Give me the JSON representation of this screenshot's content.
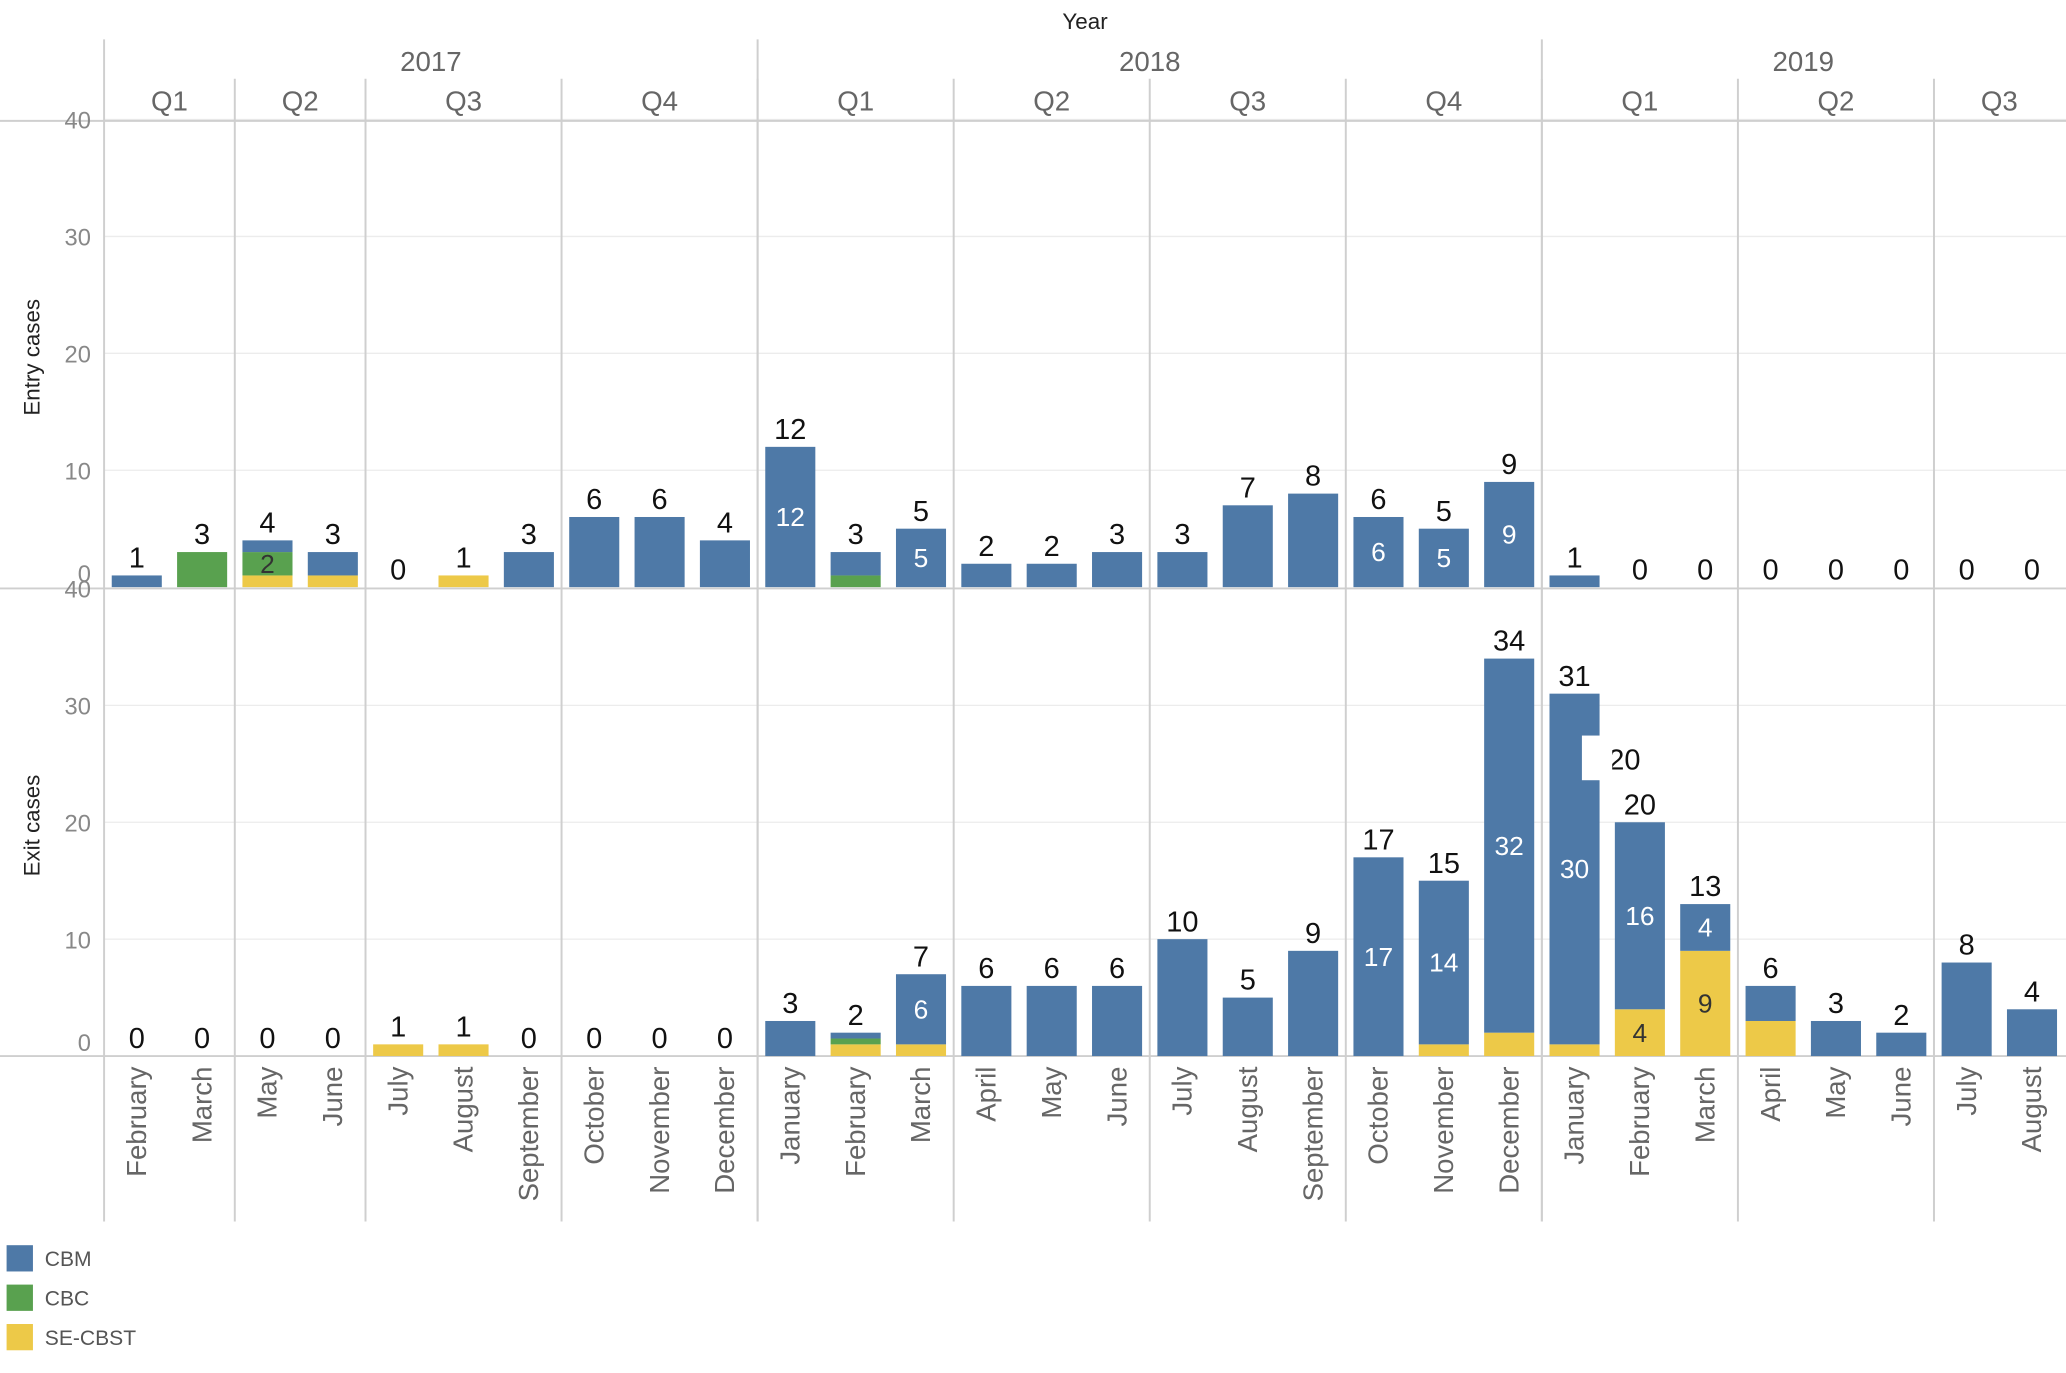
{
  "header": {
    "year_title": "Year",
    "years": [
      {
        "label": "2017",
        "quarters": [
          {
            "label": "Q1",
            "months": [
              "February",
              "March"
            ]
          },
          {
            "label": "Q2",
            "months": [
              "May",
              "June"
            ]
          },
          {
            "label": "Q3",
            "months": [
              "July",
              "August",
              "September"
            ]
          },
          {
            "label": "Q4",
            "months": [
              "October",
              "November",
              "December"
            ]
          }
        ]
      },
      {
        "label": "2018",
        "quarters": [
          {
            "label": "Q1",
            "months": [
              "January",
              "February",
              "March"
            ]
          },
          {
            "label": "Q2",
            "months": [
              "April",
              "May",
              "June"
            ]
          },
          {
            "label": "Q3",
            "months": [
              "July",
              "August",
              "September"
            ]
          },
          {
            "label": "Q4",
            "months": [
              "October",
              "November",
              "December"
            ]
          }
        ]
      },
      {
        "label": "2019",
        "quarters": [
          {
            "label": "Q1",
            "months": [
              "January",
              "February",
              "March"
            ]
          },
          {
            "label": "Q2",
            "months": [
              "April",
              "May",
              "June"
            ]
          },
          {
            "label": "Q3",
            "months": [
              "July",
              "August"
            ]
          }
        ]
      }
    ]
  },
  "legend": [
    {
      "label": "CBM",
      "color": "#4e79a7"
    },
    {
      "label": "CBC",
      "color": "#59a14f"
    },
    {
      "label": "SE-CBST",
      "color": "#edc948"
    }
  ],
  "chart_data": [
    {
      "type": "bar",
      "stacked": true,
      "ylabel": "Entry cases",
      "ylim": [
        0,
        40
      ],
      "yticks": [
        0,
        10,
        20,
        30,
        40
      ],
      "categories": [
        "2017 February",
        "2017 March",
        "2017 May",
        "2017 June",
        "2017 July",
        "2017 August",
        "2017 September",
        "2017 October",
        "2017 November",
        "2017 December",
        "2018 January",
        "2018 February",
        "2018 March",
        "2018 April",
        "2018 May",
        "2018 June",
        "2018 July",
        "2018 August",
        "2018 September",
        "2018 October",
        "2018 November",
        "2018 December",
        "2019 January",
        "2019 February",
        "2019 March",
        "2019 April",
        "2019 May",
        "2019 June",
        "2019 July",
        "2019 August"
      ],
      "series": [
        {
          "name": "SE-CBST",
          "values": [
            0,
            0,
            1,
            1,
            0,
            1,
            0,
            0,
            0,
            0,
            0,
            0,
            0,
            0,
            0,
            0,
            0,
            0,
            0,
            0,
            0,
            0,
            0,
            0,
            0,
            0,
            0,
            0,
            0,
            0
          ]
        },
        {
          "name": "CBC",
          "values": [
            0,
            3,
            2,
            0,
            0,
            0,
            0,
            0,
            0,
            0,
            0,
            1,
            0,
            0,
            0,
            0,
            0,
            0,
            0,
            0,
            0,
            0,
            0,
            0,
            0,
            0,
            0,
            0,
            0,
            0
          ]
        },
        {
          "name": "CBM",
          "values": [
            1,
            0,
            1,
            2,
            0,
            0,
            3,
            6,
            6,
            4,
            12,
            2,
            5,
            2,
            2,
            3,
            3,
            7,
            8,
            6,
            5,
            9,
            1,
            0,
            0,
            0,
            0,
            0,
            0,
            0
          ]
        }
      ],
      "totals": [
        1,
        3,
        4,
        3,
        0,
        1,
        3,
        6,
        6,
        4,
        12,
        3,
        5,
        2,
        2,
        3,
        3,
        7,
        8,
        6,
        5,
        9,
        1,
        0,
        0,
        0,
        0,
        0,
        0,
        0
      ],
      "inner_labels": [
        {
          "index": 2,
          "series": "CBC",
          "text": "2"
        },
        {
          "index": 10,
          "series": "CBM",
          "text": "12"
        },
        {
          "index": 12,
          "series": "CBM",
          "text": "5"
        },
        {
          "index": 19,
          "series": "CBM",
          "text": "6"
        },
        {
          "index": 20,
          "series": "CBM",
          "text": "5"
        },
        {
          "index": 21,
          "series": "CBM",
          "text": "9"
        }
      ]
    },
    {
      "type": "bar",
      "stacked": true,
      "ylabel": "Exit cases",
      "ylim": [
        0,
        40
      ],
      "yticks": [
        0,
        10,
        20,
        30,
        40
      ],
      "categories": [
        "2017 February",
        "2017 March",
        "2017 May",
        "2017 June",
        "2017 July",
        "2017 August",
        "2017 September",
        "2017 October",
        "2017 November",
        "2017 December",
        "2018 January",
        "2018 February",
        "2018 March",
        "2018 April",
        "2018 May",
        "2018 June",
        "2018 July",
        "2018 August",
        "2018 September",
        "2018 October",
        "2018 November",
        "2018 December",
        "2019 January",
        "2019 February",
        "2019 March",
        "2019 April",
        "2019 May",
        "2019 June",
        "2019 July",
        "2019 August"
      ],
      "series": [
        {
          "name": "SE-CBST",
          "values": [
            0,
            0,
            0,
            0,
            1,
            1,
            0,
            0,
            0,
            0,
            0,
            1,
            1,
            0,
            0,
            0,
            0,
            0,
            0,
            0,
            1,
            2,
            1,
            4,
            9,
            3,
            0,
            0,
            0,
            0
          ]
        },
        {
          "name": "CBC",
          "values": [
            0,
            0,
            0,
            0,
            0,
            0,
            0,
            0,
            0,
            0,
            0,
            0.5,
            0,
            0,
            0,
            0,
            0,
            0,
            0,
            0,
            0,
            0,
            0,
            0,
            0,
            0,
            0,
            0,
            0,
            0
          ]
        },
        {
          "name": "CBM",
          "values": [
            0,
            0,
            0,
            0,
            0,
            0,
            0,
            0,
            0,
            0,
            3,
            0.5,
            6,
            6,
            6,
            6,
            10,
            5,
            9,
            17,
            14,
            32,
            30,
            16,
            4,
            3,
            3,
            2,
            8,
            4
          ]
        }
      ],
      "totals": [
        0,
        0,
        0,
        0,
        1,
        1,
        0,
        0,
        0,
        0,
        3,
        2,
        7,
        6,
        6,
        6,
        10,
        5,
        9,
        17,
        15,
        34,
        31,
        20,
        13,
        6,
        3,
        2,
        8,
        4
      ],
      "inner_labels": [
        {
          "index": 12,
          "series": "CBM",
          "text": "6"
        },
        {
          "index": 19,
          "series": "CBM",
          "text": "17"
        },
        {
          "index": 20,
          "series": "CBM",
          "text": "14"
        },
        {
          "index": 21,
          "series": "CBM",
          "text": "32"
        },
        {
          "index": 22,
          "series": "CBM",
          "text": "30"
        },
        {
          "index": 23,
          "series": "CBM",
          "text": "16"
        },
        {
          "index": 23,
          "series": "SE-CBST",
          "text": "4"
        },
        {
          "index": 24,
          "series": "CBM",
          "text": "4"
        },
        {
          "index": 24,
          "series": "SE-CBST",
          "text": "9"
        }
      ],
      "clipped_labels": [
        {
          "index": 23,
          "text": "20"
        }
      ]
    }
  ]
}
